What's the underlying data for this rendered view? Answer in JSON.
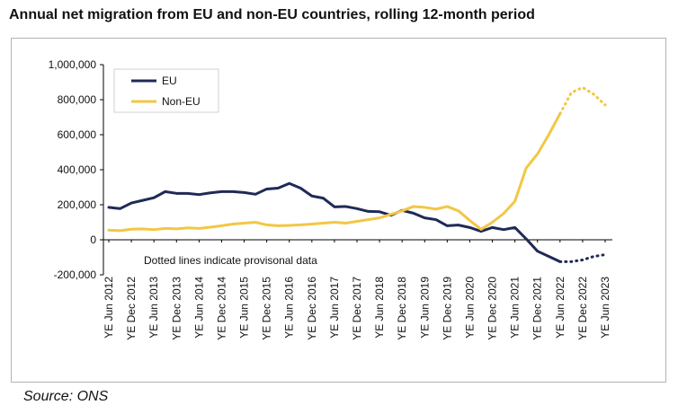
{
  "title": "Annual net migration from EU and non-EU countries, rolling 12-month period",
  "source": "Source: ONS",
  "colors": {
    "eu": "#1f2a56",
    "non_eu": "#f2c744",
    "axis": "#000000",
    "frame": "#b3b3b3"
  },
  "chart_data": {
    "type": "line",
    "title": "Annual net migration from EU and non-EU countries, rolling 12-month period",
    "xlabel": "",
    "ylabel": "",
    "ylim": [
      -200000,
      1000000
    ],
    "yticks": [
      -200000,
      0,
      200000,
      400000,
      600000,
      800000,
      1000000
    ],
    "ytick_labels": [
      "-200,000",
      "0",
      "200,000",
      "400,000",
      "600,000",
      "800,000",
      "1,000,000"
    ],
    "grid": false,
    "legend_position": "top-left",
    "annotation": "Dotted lines indicate provisonal data",
    "x": [
      "YE Jun 2012",
      "YE Sep 2012",
      "YE Dec 2012",
      "YE Mar 2013",
      "YE Jun 2013",
      "YE Sep 2013",
      "YE Dec 2013",
      "YE Mar 2014",
      "YE Jun 2014",
      "YE Sep 2014",
      "YE Dec 2014",
      "YE Mar 2015",
      "YE Jun 2015",
      "YE Sep 2015",
      "YE Dec 2015",
      "YE Mar 2016",
      "YE Jun 2016",
      "YE Sep 2016",
      "YE Dec 2016",
      "YE Mar 2017",
      "YE Jun 2017",
      "YE Sep 2017",
      "YE Dec 2017",
      "YE Mar 2018",
      "YE Jun 2018",
      "YE Sep 2018",
      "YE Dec 2018",
      "YE Mar 2019",
      "YE Jun 2019",
      "YE Sep 2019",
      "YE Dec 2019",
      "YE Mar 2020",
      "YE Jun 2020",
      "YE Sep 2020",
      "YE Dec 2020",
      "YE Mar 2021",
      "YE Jun 2021",
      "YE Sep 2021",
      "YE Dec 2021",
      "YE Mar 2022",
      "YE Jun 2022",
      "YE Sep 2022",
      "YE Dec 2022",
      "YE Mar 2023",
      "YE Jun 2023"
    ],
    "x_tick_labels": [
      "YE Jun 2012",
      "YE Dec 2012",
      "YE Jun 2013",
      "YE Dec 2013",
      "YE Jun 2014",
      "YE Dec 2014",
      "YE Jun 2015",
      "YE Dec 2015",
      "YE Jun 2016",
      "YE Dec 2016",
      "YE Jun 2017",
      "YE Dec 2017",
      "YE Jun 2018",
      "YE Dec 2018",
      "YE Jun 2019",
      "YE Dec 2019",
      "YE Jun 2020",
      "YE Dec 2020",
      "YE Jun 2021",
      "YE Dec 2021",
      "YE Jun 2022",
      "YE Dec 2022",
      "YE Jun 2023"
    ],
    "provisional_from_index": 40,
    "series": [
      {
        "name": "EU",
        "color": "#1f2a56",
        "values": [
          185000,
          178000,
          210000,
          225000,
          240000,
          275000,
          265000,
          265000,
          258000,
          268000,
          275000,
          275000,
          270000,
          260000,
          290000,
          295000,
          322000,
          295000,
          250000,
          238000,
          188000,
          190000,
          178000,
          162000,
          160000,
          140000,
          168000,
          152000,
          125000,
          115000,
          80000,
          84000,
          70000,
          48000,
          70000,
          58000,
          70000,
          5000,
          -65000,
          -95000,
          -125000,
          -125000,
          -115000,
          -95000,
          -85000
        ]
      },
      {
        "name": "Non-EU",
        "color": "#f2c744",
        "values": [
          55000,
          52000,
          60000,
          62000,
          58000,
          65000,
          62000,
          68000,
          65000,
          72000,
          80000,
          90000,
          95000,
          100000,
          85000,
          80000,
          82000,
          85000,
          90000,
          95000,
          100000,
          95000,
          105000,
          115000,
          125000,
          145000,
          165000,
          190000,
          185000,
          175000,
          190000,
          165000,
          110000,
          60000,
          100000,
          150000,
          220000,
          410000,
          490000,
          600000,
          720000,
          840000,
          870000,
          830000,
          770000
        ]
      }
    ]
  }
}
